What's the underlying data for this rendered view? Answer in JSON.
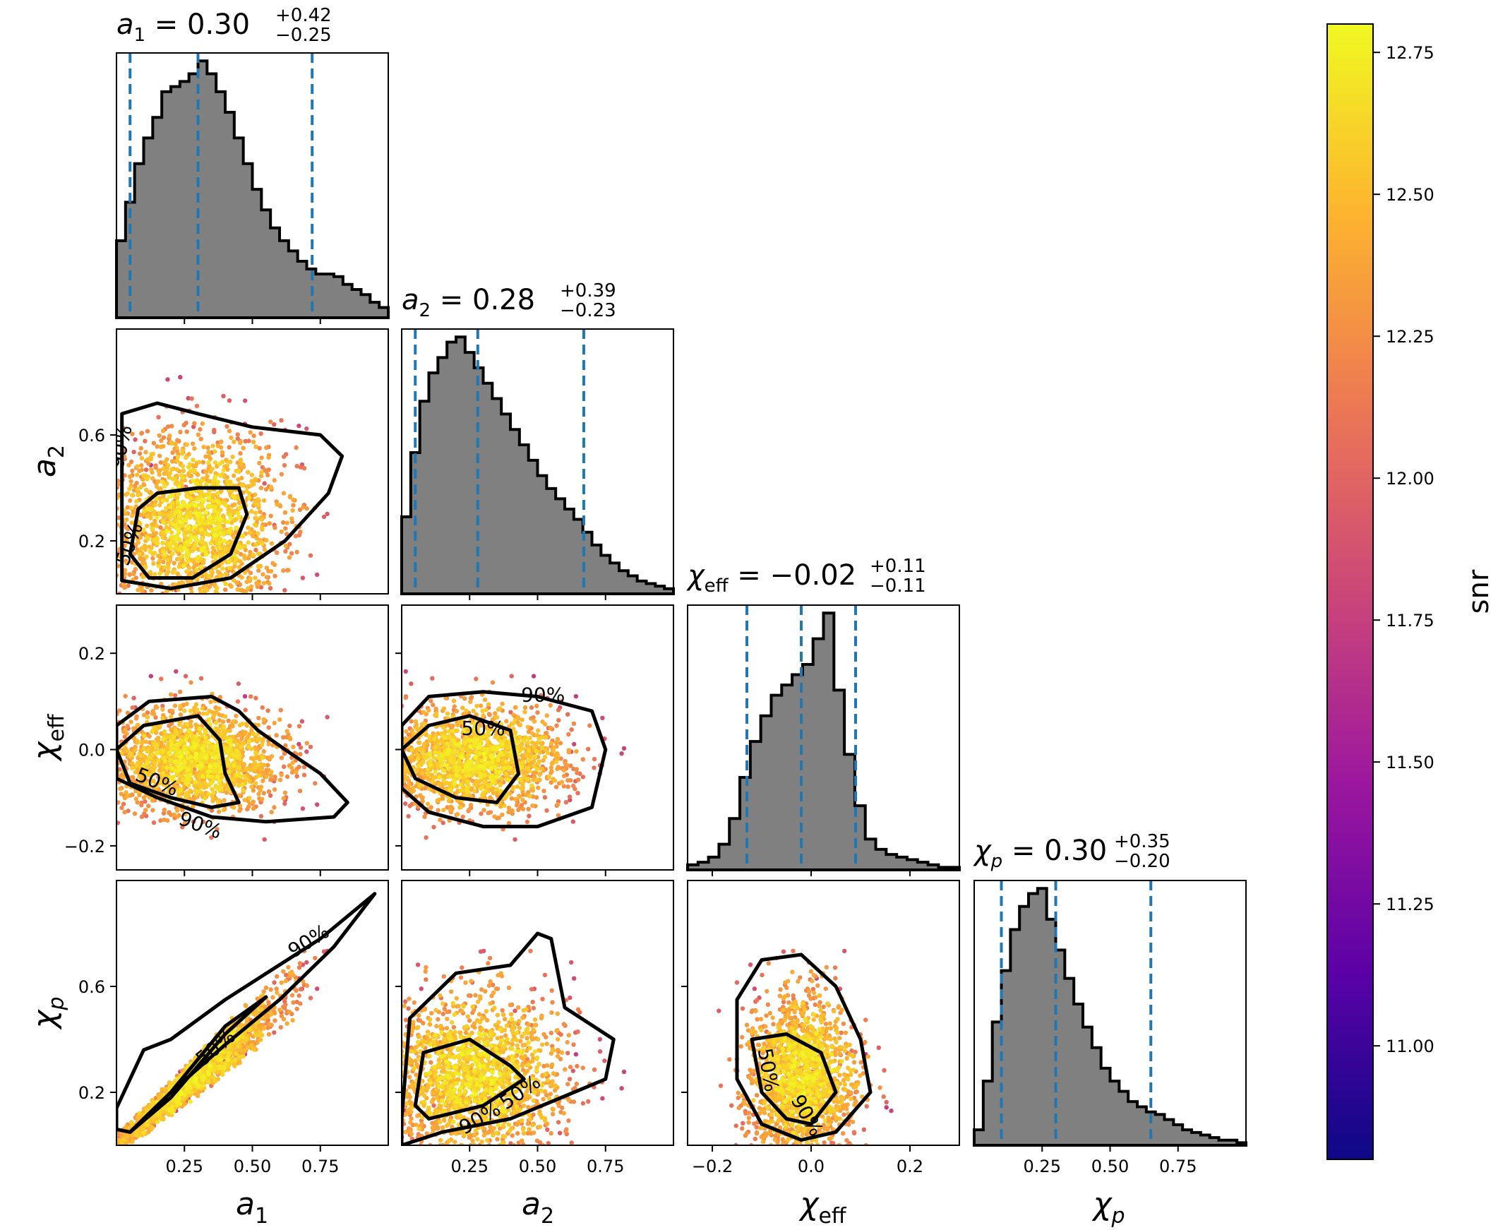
{
  "chart_data": {
    "type": "corner",
    "parameters": [
      {
        "key": "a1",
        "symbol": "a",
        "sub": "1",
        "range": [
          0.0,
          1.0
        ],
        "ticks": [
          0.25,
          0.5,
          0.75
        ],
        "tick_labels": [
          "0.25",
          "0.50",
          "0.75"
        ],
        "title": {
          "median": "0.30",
          "plus": "+0.42",
          "minus": "−0.25"
        },
        "quantiles": [
          0.05,
          0.3,
          0.72
        ]
      },
      {
        "key": "a2",
        "symbol": "a",
        "sub": "2",
        "range": [
          0.0,
          1.0
        ],
        "ticks": [
          0.25,
          0.5,
          0.75
        ],
        "tick_labels": [
          "0.25",
          "0.50",
          "0.75"
        ],
        "title": {
          "median": "0.28",
          "plus": "+0.39",
          "minus": "−0.23"
        },
        "quantiles": [
          0.05,
          0.28,
          0.67
        ],
        "left_ticks": [
          0.2,
          0.6
        ],
        "left_tick_labels": [
          "0.2",
          "0.6"
        ]
      },
      {
        "key": "chi_eff",
        "symbol": "χ",
        "sub": "eff",
        "range": [
          -0.25,
          0.3
        ],
        "ticks": [
          -0.2,
          0.0,
          0.2
        ],
        "tick_labels": [
          "−0.2",
          "0.0",
          "0.2"
        ],
        "title": {
          "median": "−0.02",
          "plus": "+0.11",
          "minus": "−0.11"
        },
        "quantiles": [
          -0.13,
          -0.02,
          0.09
        ],
        "left_ticks": [
          -0.2,
          0.0,
          0.2
        ],
        "left_tick_labels": [
          "−0.2",
          "0.0",
          "0.2"
        ]
      },
      {
        "key": "chi_p",
        "symbol": "χ",
        "sub": "p",
        "range": [
          0.0,
          1.0
        ],
        "ticks": [
          0.25,
          0.5,
          0.75
        ],
        "tick_labels": [
          "0.25",
          "0.50",
          "0.75"
        ],
        "title": {
          "median": "0.30",
          "plus": "+0.35",
          "minus": "−0.20"
        },
        "quantiles": [
          0.1,
          0.3,
          0.65
        ],
        "left_ticks": [
          0.2,
          0.6
        ],
        "left_tick_labels": [
          "0.2",
          "0.6"
        ]
      }
    ],
    "histograms": {
      "a1": [
        0.3,
        0.45,
        0.6,
        0.7,
        0.78,
        0.88,
        0.9,
        0.92,
        0.95,
        1.0,
        0.95,
        0.88,
        0.8,
        0.7,
        0.6,
        0.5,
        0.42,
        0.35,
        0.3,
        0.26,
        0.22,
        0.19,
        0.17,
        0.17,
        0.16,
        0.13,
        0.11,
        0.09,
        0.06,
        0.04
      ],
      "a2": [
        0.3,
        0.55,
        0.75,
        0.86,
        0.92,
        0.98,
        1.0,
        0.94,
        0.88,
        0.82,
        0.76,
        0.7,
        0.64,
        0.58,
        0.52,
        0.46,
        0.41,
        0.37,
        0.33,
        0.29,
        0.24,
        0.19,
        0.15,
        0.12,
        0.09,
        0.07,
        0.05,
        0.04,
        0.03,
        0.02
      ],
      "chi_eff": [
        0.02,
        0.03,
        0.05,
        0.1,
        0.2,
        0.36,
        0.5,
        0.6,
        0.68,
        0.72,
        0.76,
        0.8,
        0.9,
        1.0,
        0.7,
        0.45,
        0.25,
        0.12,
        0.08,
        0.06,
        0.05,
        0.04,
        0.03,
        0.02,
        0.01,
        0.01
      ],
      "chi_p": [
        0.06,
        0.25,
        0.48,
        0.68,
        0.84,
        0.93,
        0.98,
        1.0,
        0.88,
        0.76,
        0.65,
        0.55,
        0.46,
        0.38,
        0.3,
        0.25,
        0.21,
        0.17,
        0.15,
        0.13,
        0.12,
        0.1,
        0.08,
        0.06,
        0.05,
        0.04,
        0.03,
        0.02,
        0.02,
        0.01
      ]
    },
    "contour_levels": [
      "50%",
      "90%"
    ],
    "colorbar": {
      "label": "snr",
      "min": 10.8,
      "max": 12.8,
      "ticks": [
        11.0,
        11.25,
        11.5,
        11.75,
        12.0,
        12.25,
        12.5,
        12.75
      ],
      "tick_labels": [
        "11.00",
        "11.25",
        "11.50",
        "11.75",
        "12.00",
        "12.25",
        "12.50",
        "12.75"
      ],
      "colormap": [
        "#0d0887",
        "#5c01a6",
        "#9c179e",
        "#cc4778",
        "#ed7953",
        "#fdb42f",
        "#f0f921"
      ]
    },
    "colors": {
      "hist_fill": "#808080",
      "quantile_line": "#1f77b4",
      "contour": "#000000"
    }
  }
}
